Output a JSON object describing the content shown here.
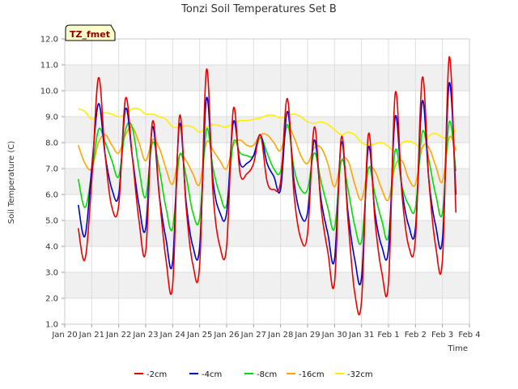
{
  "chart_data": {
    "type": "line",
    "title": "Tonzi Soil Temperatures Set B",
    "xlabel": "Time",
    "ylabel": "Soil Temperature (C)",
    "tag": "TZ_fmet",
    "ylim": [
      1.0,
      12.0
    ],
    "yticks": [
      "1.0",
      "2.0",
      "3.0",
      "4.0",
      "5.0",
      "6.0",
      "7.0",
      "8.0",
      "9.0",
      "10.0",
      "11.0",
      "12.0"
    ],
    "xlim": [
      0,
      15
    ],
    "xtick_labels": [
      "Jan 20",
      "Jan 21",
      "Jan 22",
      "Jan 23",
      "Jan 24",
      "Jan 25",
      "Jan 26",
      "Jan 27",
      "Jan 28",
      "Jan 29",
      "Jan 30",
      "Jan 31",
      "Feb 1",
      "Feb 2",
      "Feb 3",
      "Feb 4"
    ],
    "grid": true,
    "legend_position": "bottom",
    "series": [
      {
        "name": "-2cm",
        "color": "#ee0000",
        "x": [
          0.5,
          0.75,
          1.0,
          1.25,
          1.5,
          1.75,
          2.0,
          2.25,
          2.5,
          2.75,
          3.0,
          3.25,
          3.5,
          3.75,
          4.0,
          4.25,
          4.5,
          4.75,
          5.0,
          5.25,
          5.5,
          5.75,
          6.0,
          6.25,
          6.5,
          6.75,
          7.0,
          7.25,
          7.5,
          7.75,
          8.0,
          8.25,
          8.5,
          8.75,
          9.0,
          9.25,
          9.5,
          9.75,
          10.0,
          10.25,
          10.5,
          10.75,
          11.0,
          11.25,
          11.5,
          11.75,
          12.0,
          12.25,
          12.5,
          12.75,
          13.0,
          13.25,
          13.5,
          13.75,
          14.0,
          14.25,
          14.5
        ],
        "y": [
          4.7,
          3.5,
          6.5,
          10.5,
          7.5,
          5.5,
          5.6,
          9.7,
          7.5,
          5.0,
          3.8,
          8.8,
          6.0,
          3.5,
          2.5,
          9.0,
          5.5,
          3.3,
          3.3,
          10.8,
          6.0,
          4.0,
          4.0,
          9.3,
          6.8,
          6.8,
          7.2,
          8.3,
          6.5,
          6.2,
          6.5,
          9.7,
          6.0,
          4.3,
          4.5,
          8.6,
          5.5,
          3.8,
          2.6,
          8.2,
          5.0,
          2.2,
          1.9,
          8.3,
          5.0,
          3.0,
          2.6,
          9.9,
          6.0,
          4.0,
          4.3,
          10.5,
          6.5,
          4.0,
          3.5,
          11.3,
          5.3
        ]
      },
      {
        "name": "-4cm",
        "color": "#0000cc",
        "x": [
          0.5,
          0.75,
          1.0,
          1.25,
          1.5,
          1.75,
          2.0,
          2.25,
          2.5,
          2.75,
          3.0,
          3.25,
          3.5,
          3.75,
          4.0,
          4.25,
          4.5,
          4.75,
          5.0,
          5.25,
          5.5,
          5.75,
          6.0,
          6.25,
          6.5,
          6.75,
          7.0,
          7.25,
          7.5,
          7.75,
          8.0,
          8.25,
          8.5,
          8.75,
          9.0,
          9.25,
          9.5,
          9.75,
          10.0,
          10.25,
          10.5,
          10.75,
          11.0,
          11.25,
          11.5,
          11.75,
          12.0,
          12.25,
          12.5,
          12.75,
          13.0,
          13.25,
          13.5,
          13.75,
          14.0,
          14.25,
          14.5
        ],
        "y": [
          5.6,
          4.4,
          7.0,
          9.5,
          7.5,
          6.2,
          6.0,
          9.3,
          7.5,
          5.6,
          4.7,
          8.6,
          6.0,
          4.3,
          3.4,
          8.7,
          5.7,
          4.0,
          4.0,
          9.7,
          6.5,
          5.3,
          5.3,
          8.8,
          7.2,
          7.2,
          7.5,
          8.3,
          7.2,
          6.7,
          6.2,
          9.2,
          6.5,
          5.2,
          5.3,
          8.1,
          5.8,
          4.5,
          3.5,
          8.0,
          5.3,
          3.5,
          2.8,
          7.8,
          5.3,
          4.0,
          3.9,
          9.0,
          6.2,
          4.8,
          4.7,
          9.6,
          6.5,
          4.8,
          4.3,
          10.3,
          6.0
        ]
      },
      {
        "name": "-8cm",
        "color": "#00dd00",
        "x": [
          0.5,
          0.75,
          1.0,
          1.25,
          1.5,
          1.75,
          2.0,
          2.25,
          2.5,
          2.75,
          3.0,
          3.25,
          3.5,
          3.75,
          4.0,
          4.25,
          4.5,
          4.75,
          5.0,
          5.25,
          5.5,
          5.75,
          6.0,
          6.25,
          6.5,
          6.75,
          7.0,
          7.25,
          7.5,
          7.75,
          8.0,
          8.25,
          8.5,
          8.75,
          9.0,
          9.25,
          9.5,
          9.75,
          10.0,
          10.25,
          10.5,
          10.75,
          11.0,
          11.25,
          11.5,
          11.75,
          12.0,
          12.25,
          12.5,
          12.75,
          13.0,
          13.25,
          13.5,
          13.75,
          14.0,
          14.25,
          14.5
        ],
        "y": [
          6.6,
          5.5,
          6.8,
          8.5,
          8.0,
          7.3,
          6.7,
          8.5,
          8.6,
          7.0,
          5.9,
          8.0,
          7.0,
          5.5,
          4.7,
          7.5,
          6.7,
          5.3,
          5.1,
          8.5,
          7.0,
          6.0,
          5.6,
          8.0,
          7.6,
          7.5,
          7.5,
          8.2,
          7.6,
          7.0,
          6.9,
          8.7,
          7.0,
          6.2,
          6.2,
          7.6,
          6.5,
          5.5,
          4.7,
          7.3,
          6.2,
          4.8,
          4.2,
          7.0,
          6.0,
          5.0,
          4.4,
          7.7,
          6.3,
          5.6,
          5.5,
          8.4,
          7.3,
          6.0,
          5.3,
          8.8,
          6.9
        ]
      },
      {
        "name": "-16cm",
        "color": "#ffa500",
        "x": [
          0.5,
          0.75,
          1.0,
          1.25,
          1.5,
          1.75,
          2.0,
          2.25,
          2.5,
          2.75,
          3.0,
          3.25,
          3.5,
          3.75,
          4.0,
          4.25,
          4.5,
          4.75,
          5.0,
          5.25,
          5.5,
          5.75,
          6.0,
          6.25,
          6.5,
          6.75,
          7.0,
          7.25,
          7.5,
          7.75,
          8.0,
          8.25,
          8.5,
          8.75,
          9.0,
          9.25,
          9.5,
          9.75,
          10.0,
          10.25,
          10.5,
          10.75,
          11.0,
          11.25,
          11.5,
          11.75,
          12.0,
          12.25,
          12.5,
          12.75,
          13.0,
          13.25,
          13.5,
          13.75,
          14.0,
          14.25,
          14.5
        ],
        "y": [
          7.9,
          7.2,
          7.0,
          8.0,
          8.3,
          7.9,
          7.6,
          8.3,
          8.6,
          8.0,
          7.3,
          8.1,
          7.8,
          7.0,
          6.4,
          7.5,
          7.3,
          6.8,
          6.4,
          8.0,
          7.7,
          7.3,
          7.0,
          7.9,
          8.1,
          7.9,
          7.9,
          8.3,
          8.3,
          8.0,
          7.7,
          8.6,
          8.2,
          7.5,
          7.2,
          7.8,
          7.8,
          7.2,
          6.3,
          7.3,
          7.3,
          6.4,
          5.8,
          7.0,
          6.9,
          6.2,
          5.8,
          7.1,
          7.3,
          6.6,
          6.4,
          7.8,
          7.8,
          7.1,
          6.5,
          8.2,
          7.7
        ]
      },
      {
        "name": "-32cm",
        "color": "#ffee00",
        "x": [
          0.5,
          0.75,
          1.0,
          1.25,
          1.5,
          1.75,
          2.0,
          2.25,
          2.5,
          2.75,
          3.0,
          3.25,
          3.5,
          3.75,
          4.0,
          4.25,
          4.5,
          4.75,
          5.0,
          5.25,
          5.5,
          5.75,
          6.0,
          6.25,
          6.5,
          6.75,
          7.0,
          7.25,
          7.5,
          7.75,
          8.0,
          8.25,
          8.5,
          8.75,
          9.0,
          9.25,
          9.5,
          9.75,
          10.0,
          10.25,
          10.5,
          10.75,
          11.0,
          11.25,
          11.5,
          11.75,
          12.0,
          12.25,
          12.5,
          12.75,
          13.0,
          13.25,
          13.5,
          13.75,
          14.0,
          14.25,
          14.5
        ],
        "y": [
          9.3,
          9.2,
          8.9,
          9.1,
          9.15,
          9.1,
          9.0,
          9.1,
          9.3,
          9.3,
          9.1,
          9.1,
          9.0,
          8.9,
          8.6,
          8.6,
          8.65,
          8.6,
          8.4,
          8.6,
          8.7,
          8.65,
          8.6,
          8.75,
          8.85,
          8.85,
          8.9,
          8.95,
          9.05,
          9.05,
          8.95,
          9.05,
          9.1,
          9.0,
          8.8,
          8.75,
          8.8,
          8.7,
          8.5,
          8.3,
          8.4,
          8.3,
          8.0,
          7.9,
          7.95,
          8.0,
          7.85,
          7.65,
          8.0,
          8.05,
          7.95,
          7.8,
          8.25,
          8.35,
          8.2,
          8.2,
          8.5
        ]
      }
    ]
  }
}
